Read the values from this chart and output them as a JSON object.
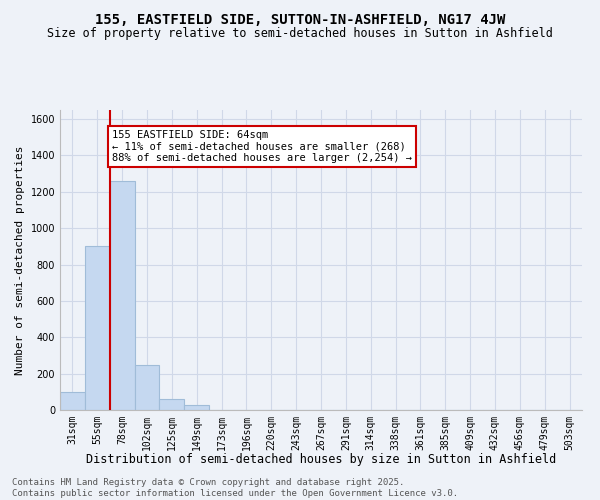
{
  "title": "155, EASTFIELD SIDE, SUTTON-IN-ASHFIELD, NG17 4JW",
  "subtitle": "Size of property relative to semi-detached houses in Sutton in Ashfield",
  "xlabel": "Distribution of semi-detached houses by size in Sutton in Ashfield",
  "ylabel": "Number of semi-detached properties",
  "categories": [
    "31sqm",
    "55sqm",
    "78sqm",
    "102sqm",
    "125sqm",
    "149sqm",
    "173sqm",
    "196sqm",
    "220sqm",
    "243sqm",
    "267sqm",
    "291sqm",
    "314sqm",
    "338sqm",
    "361sqm",
    "385sqm",
    "409sqm",
    "432sqm",
    "456sqm",
    "479sqm",
    "503sqm"
  ],
  "values": [
    100,
    900,
    1260,
    245,
    60,
    25,
    0,
    0,
    0,
    0,
    0,
    0,
    0,
    0,
    0,
    0,
    0,
    0,
    0,
    0,
    0
  ],
  "bar_color": "#c5d8f0",
  "bar_edge_color": "#a0bcd8",
  "red_line_x": 1.5,
  "annotation_text": "155 EASTFIELD SIDE: 64sqm\n← 11% of semi-detached houses are smaller (268)\n88% of semi-detached houses are larger (2,254) →",
  "annotation_box_color": "#ffffff",
  "annotation_box_edge_color": "#cc0000",
  "red_line_color": "#cc0000",
  "ylim": [
    0,
    1650
  ],
  "yticks": [
    0,
    200,
    400,
    600,
    800,
    1000,
    1200,
    1400,
    1600
  ],
  "grid_color": "#d0d8e8",
  "bg_color": "#eef2f8",
  "footer_line1": "Contains HM Land Registry data © Crown copyright and database right 2025.",
  "footer_line2": "Contains public sector information licensed under the Open Government Licence v3.0.",
  "title_fontsize": 10,
  "subtitle_fontsize": 8.5,
  "xlabel_fontsize": 8.5,
  "ylabel_fontsize": 8,
  "tick_fontsize": 7,
  "footer_fontsize": 6.5,
  "annotation_fontsize": 7.5
}
